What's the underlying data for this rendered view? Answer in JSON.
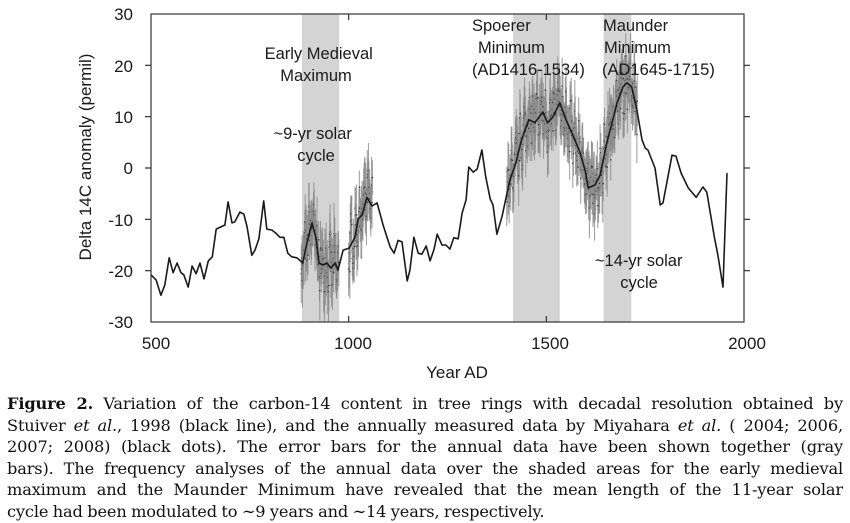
{
  "chart_data": {
    "type": "line",
    "title": "",
    "xlabel": "Year AD",
    "ylabel": "Delta 14C anomaly (permil)",
    "xlim": [
      500,
      2000
    ],
    "ylim": [
      -30,
      30
    ],
    "xticks": [
      500,
      1000,
      1500,
      2000
    ],
    "yticks": [
      30,
      20,
      10,
      0,
      -10,
      -20,
      -30
    ],
    "xtick_labels": [
      "500",
      "1000",
      "1500",
      "2000"
    ],
    "ytick_labels": [
      "30",
      "20",
      "10",
      "0",
      "-10",
      "-20",
      "-30"
    ],
    "grid": false,
    "series": [
      {
        "name": "Stuiver et al., 1998 (decadal, black line)",
        "color": "#1a1a1a",
        "x": [
          500,
          513,
          525,
          535,
          546,
          556,
          566,
          576,
          583,
          594,
          604,
          614,
          624,
          634,
          645,
          655,
          665,
          687,
          695,
          705,
          712,
          725,
          735,
          743,
          755,
          763,
          773,
          785,
          793,
          806,
          816,
          826,
          836,
          846,
          856,
          869,
          884,
          892,
          907,
          917,
          925,
          935,
          945,
          955,
          966,
          973,
          986,
          1001,
          1016,
          1024,
          1034,
          1046,
          1059,
          1072,
          1087,
          1097,
          1105,
          1115,
          1125,
          1135,
          1148,
          1155,
          1165,
          1176,
          1185,
          1196,
          1206,
          1216,
          1224,
          1236,
          1246,
          1256,
          1266,
          1277,
          1287,
          1297,
          1304,
          1315,
          1325,
          1337,
          1347,
          1358,
          1365,
          1375,
          1388,
          1398,
          1408,
          1423,
          1436,
          1446,
          1456,
          1471,
          1491,
          1503,
          1516,
          1534,
          1552,
          1567,
          1585,
          1598,
          1606,
          1623,
          1636,
          1653,
          1666,
          1679,
          1694,
          1704,
          1716,
          1729,
          1742,
          1750,
          1757,
          1775,
          1788,
          1795,
          1818,
          1828,
          1841,
          1859,
          1879,
          1896,
          1906,
          1925,
          1934,
          1947,
          1957
        ],
        "y": [
          -20.8,
          -21.8,
          -24.8,
          -22.8,
          -17.5,
          -20.4,
          -18.5,
          -20.4,
          -20.8,
          -23.2,
          -19.1,
          -20.6,
          -18.5,
          -21.6,
          -18.1,
          -17.3,
          -11.9,
          -11.1,
          -6.6,
          -10.7,
          -10.5,
          -8.6,
          -9.0,
          -11.5,
          -17.0,
          -16.0,
          -13.8,
          -6.4,
          -11.9,
          -12.1,
          -12.7,
          -13.5,
          -13.5,
          -16.6,
          -17.3,
          -17.5,
          -18.5,
          -15.4,
          -10.7,
          -13.5,
          -18.5,
          -18.9,
          -18.5,
          -19.5,
          -18.5,
          -19.9,
          -16.0,
          -15.6,
          -13.5,
          -9.9,
          -9.2,
          -5.7,
          -7.4,
          -6.8,
          -11.1,
          -13.5,
          -15.4,
          -16.6,
          -14.1,
          -14.4,
          -22.0,
          -19.9,
          -13.5,
          -16.6,
          -16.8,
          -15.2,
          -18.1,
          -15.8,
          -12.9,
          -15.0,
          -15.0,
          -15.8,
          -13.6,
          -13.8,
          -8.8,
          -6.2,
          0.2,
          -0.8,
          -0.2,
          3.5,
          -1.8,
          -6.0,
          -7.2,
          -12.9,
          -9.4,
          -5.8,
          -2.3,
          1.0,
          5.1,
          7.4,
          9.4,
          8.8,
          10.9,
          8.8,
          9.9,
          12.7,
          9.0,
          6.4,
          3.1,
          -0.4,
          -3.9,
          -3.3,
          -1.4,
          4.9,
          8.8,
          12.7,
          15.8,
          16.6,
          15.8,
          11.3,
          5.5,
          3.9,
          3.5,
          0.0,
          -7.2,
          -6.8,
          2.5,
          2.3,
          -1.0,
          -3.9,
          -5.7,
          -3.7,
          -4.7,
          -13.5,
          -17.0,
          -23.2,
          -1.0
        ]
      },
      {
        "name": "Miyahara et al. annual data (black dots, gray error bars)",
        "color": "#333333",
        "errorbar_color": "#8a8a8a",
        "segments": [
          {
            "start": 880,
            "end": 975
          },
          {
            "start": 1000,
            "end": 1060
          },
          {
            "start": 1400,
            "end": 1620
          },
          {
            "start": 1620,
            "end": 1730
          }
        ]
      }
    ],
    "shaded_regions": [
      {
        "start": 882,
        "end": 976,
        "color": "#d4d4d4"
      },
      {
        "start": 1416,
        "end": 1534,
        "color": "#d4d4d4"
      },
      {
        "start": 1645,
        "end": 1715,
        "color": "#d4d4d4"
      }
    ],
    "annotations": [
      {
        "lines": [
          "Early Medieval",
          "Maximum"
        ]
      },
      {
        "lines": [
          "~9-yr solar",
          "cycle"
        ]
      },
      {
        "lines": [
          "Spoerer",
          "Minimum",
          "(AD1416-1534)"
        ]
      },
      {
        "lines": [
          "Maunder",
          "Minimum",
          "(AD1645-1715)"
        ]
      },
      {
        "lines": [
          "~14-yr solar",
          "cycle"
        ]
      }
    ]
  },
  "caption": {
    "label": "Figure 2.",
    "lines": [
      [
        "Variation of the carbon-14 content in tree rings with decadal resolution obtained by"
      ],
      [
        "Stuiver ",
        "et al.",
        ", 1998 (black line), and the annually measured data by Miyahara ",
        "et al.",
        " ( 2004; 2006,"
      ],
      [
        "2007; 2008) (black dots). The error bars for the annual data have been shown together (gray"
      ],
      [
        "bars). The frequency analyses of the annual data over the shaded areas for the early medieval"
      ],
      [
        "maximum and the Maunder Minimum have revealed that the mean length of the 11-year solar"
      ],
      [
        "cycle had been modulated to ∼9 years and ∼14 years, respectively."
      ]
    ]
  }
}
